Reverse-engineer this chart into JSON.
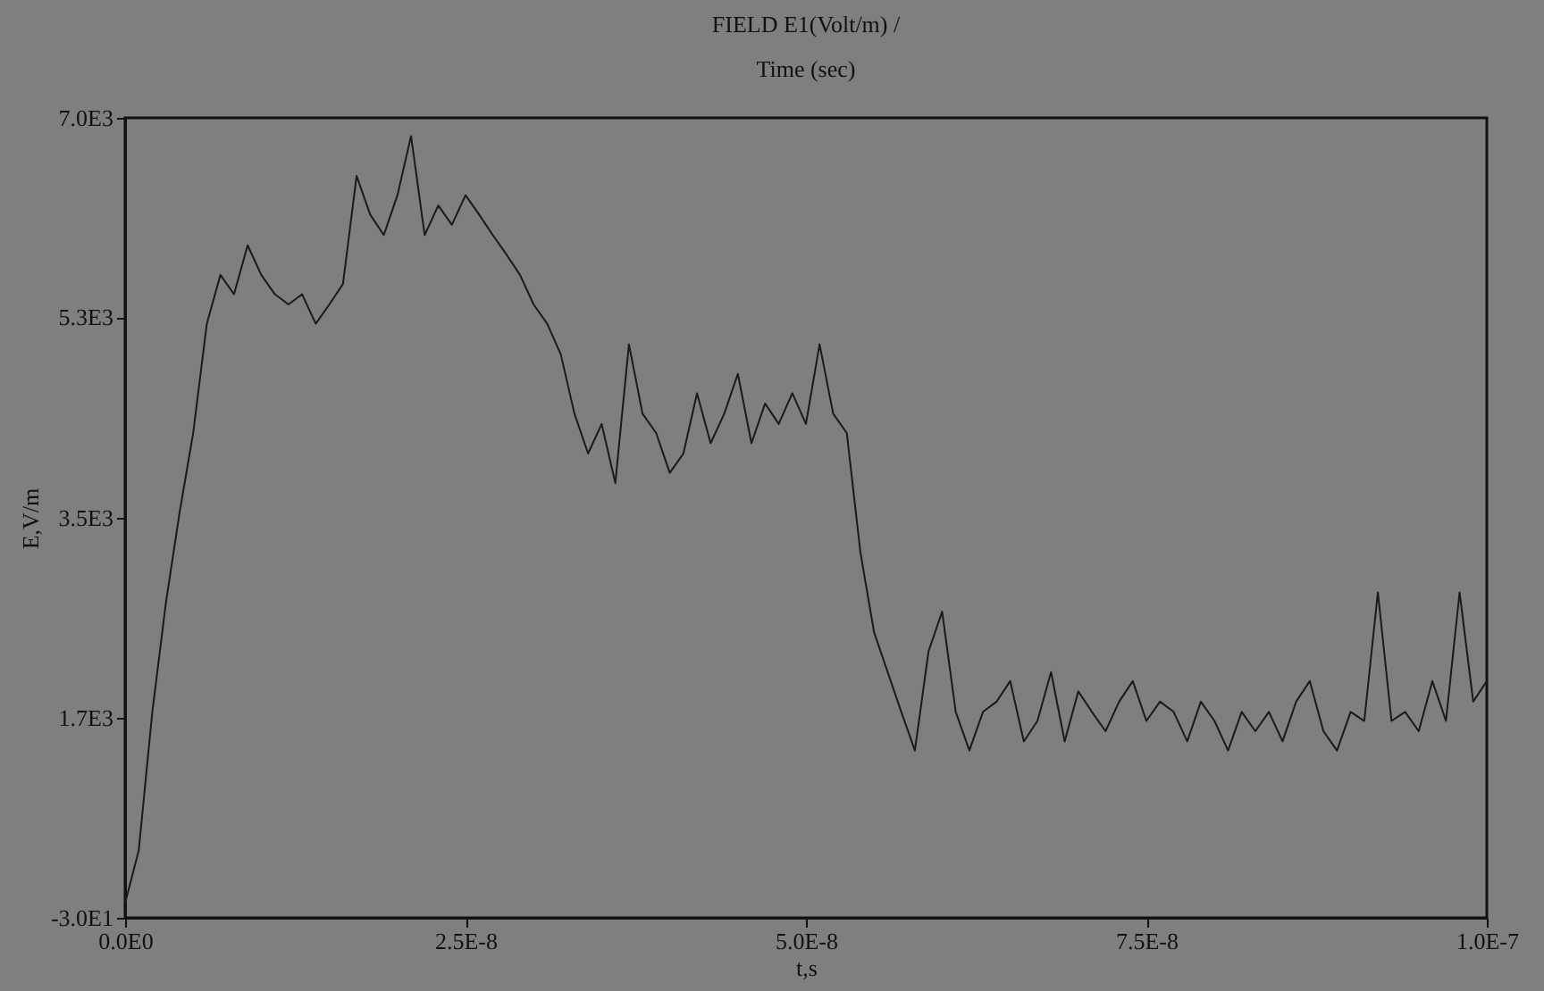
{
  "chart_data": {
    "type": "line",
    "title": "FIELD E1(Volt/m) /",
    "subtitle": "Time (sec)",
    "xlabel": "t,s",
    "ylabel": "E,V/m",
    "x": [
      0,
      1e-09,
      2e-09,
      3e-09,
      4e-09,
      5e-09,
      6e-09,
      7e-09,
      8e-09,
      9e-09,
      1e-08,
      1.1e-08,
      1.2e-08,
      1.3e-08,
      1.4e-08,
      1.5e-08,
      1.6e-08,
      1.7e-08,
      1.8e-08,
      1.9e-08,
      2e-08,
      2.1e-08,
      2.2e-08,
      2.3e-08,
      2.4e-08,
      2.5e-08,
      2.6e-08,
      2.7e-08,
      2.8e-08,
      2.9e-08,
      3e-08,
      3.1e-08,
      3.2e-08,
      3.3e-08,
      3.4e-08,
      3.5e-08,
      3.6e-08,
      3.7e-08,
      3.8e-08,
      3.9e-08,
      4e-08,
      4.1e-08,
      4.2e-08,
      4.3e-08,
      4.4e-08,
      4.5e-08,
      4.6e-08,
      4.7e-08,
      4.8e-08,
      4.9e-08,
      5e-08,
      5.1e-08,
      5.2e-08,
      5.3e-08,
      5.4e-08,
      5.5e-08,
      5.6e-08,
      5.7e-08,
      5.8e-08,
      5.9e-08,
      6e-08,
      6.1e-08,
      6.2e-08,
      6.3e-08,
      6.4e-08,
      6.5e-08,
      6.6e-08,
      6.7e-08,
      6.8e-08,
      6.9e-08,
      7e-08,
      7.1e-08,
      7.2e-08,
      7.3e-08,
      7.4e-08,
      7.5e-08,
      7.6e-08,
      7.7e-08,
      7.8e-08,
      7.9e-08,
      8e-08,
      8.1e-08,
      8.2e-08,
      8.3e-08,
      8.4e-08,
      8.5e-08,
      8.6e-08,
      8.7e-08,
      8.8e-08,
      8.9e-08,
      9e-08,
      9.1e-08,
      9.2e-08,
      9.3e-08,
      9.4e-08,
      9.5e-08,
      9.6e-08,
      9.7e-08,
      9.8e-08,
      9.9e-08,
      1e-07
    ],
    "series": [
      {
        "color": "#1a1a1a",
        "values": [
          100,
          560,
          1780,
          2740,
          3530,
          4230,
          5190,
          5620,
          5450,
          5880,
          5620,
          5450,
          5360,
          5450,
          5190,
          5360,
          5540,
          6490,
          6150,
          5970,
          6320,
          6840,
          5970,
          6230,
          6060,
          6320,
          6150,
          5970,
          5800,
          5620,
          5360,
          5190,
          4920,
          4400,
          4050,
          4310,
          3790,
          5010,
          4400,
          4230,
          3880,
          4050,
          4580,
          4140,
          4400,
          4750,
          4140,
          4490,
          4310,
          4580,
          4310,
          5010,
          4400,
          4230,
          3180,
          2480,
          2130,
          1780,
          1440,
          2310,
          2660,
          1780,
          1440,
          1780,
          1870,
          2050,
          1520,
          1700,
          2130,
          1520,
          1960,
          1780,
          1610,
          1870,
          2050,
          1700,
          1870,
          1780,
          1520,
          1870,
          1700,
          1440,
          1780,
          1610,
          1780,
          1520,
          1870,
          2050,
          1610,
          1440,
          1780,
          1700,
          2830,
          1700,
          1780,
          1610,
          2050,
          1700,
          2830,
          1870,
          2050
        ]
      }
    ],
    "xlim": [
      0,
      1e-07
    ],
    "xticks": [
      {
        "value": 0,
        "label": "0.0E0"
      },
      {
        "value": 2.5e-08,
        "label": "2.5E-8"
      },
      {
        "value": 5e-08,
        "label": "5.0E-8"
      },
      {
        "value": 7.5e-08,
        "label": "7.5E-8"
      },
      {
        "value": 1e-07,
        "label": "1.0E-7"
      }
    ],
    "ylim": [
      -30,
      7000
    ],
    "yticks": [
      {
        "value": -30,
        "label": "-3.0E1"
      },
      {
        "value": 1727.5,
        "label": "1.7E3"
      },
      {
        "value": 3485,
        "label": "3.5E3"
      },
      {
        "value": 5250,
        "label": "5.3E3"
      },
      {
        "value": 7000,
        "label": "7.0E3"
      }
    ],
    "grid": false,
    "marker": "none",
    "line_style": "solid"
  }
}
